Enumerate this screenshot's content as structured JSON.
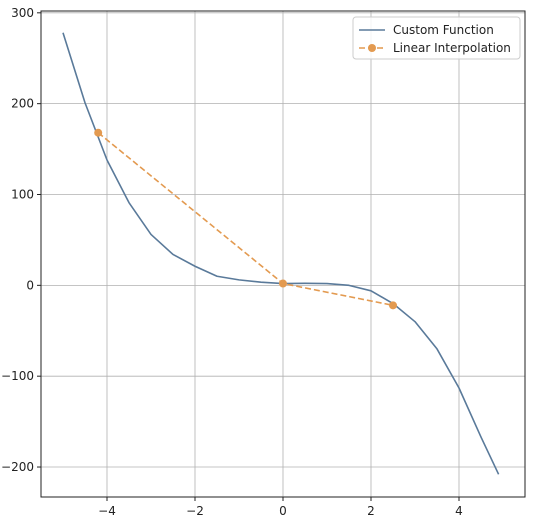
{
  "chart_data": {
    "type": "line",
    "title": "",
    "xlabel": "",
    "ylabel": "",
    "xlim": [
      -5.5,
      5.5
    ],
    "ylim": [
      -233,
      302
    ],
    "xticks": [
      -4,
      -2,
      0,
      2,
      4
    ],
    "xtick_labels": [
      "−4",
      "−2",
      "0",
      "2",
      "4"
    ],
    "yticks": [
      -200,
      -100,
      0,
      100,
      200,
      300
    ],
    "ytick_labels": [
      "−200",
      "−100",
      "0",
      "100",
      "200",
      "300"
    ],
    "grid": true,
    "legend_position": "top-right",
    "series": [
      {
        "name": "Custom Function",
        "kind": "curve",
        "color": "#5a7a9a",
        "x": [
          -5.0,
          -4.5,
          -4.0,
          -3.5,
          -3.0,
          -2.5,
          -2.0,
          -1.5,
          -1.0,
          -0.5,
          0.0,
          0.5,
          1.0,
          1.5,
          2.0,
          2.5,
          3.0,
          3.5,
          4.0,
          4.5,
          4.9
        ],
        "y": [
          278,
          201,
          138,
          91,
          56,
          34,
          21,
          10,
          6,
          3.5,
          2,
          2.2,
          2,
          0,
          -6,
          -20,
          -40,
          -70,
          -113,
          -167,
          -208
        ]
      },
      {
        "name": "Linear Interpolation",
        "kind": "dashed-markers",
        "color": "#e39a50",
        "x": [
          -4.2,
          0.0,
          2.5
        ],
        "y": [
          168,
          2,
          -22
        ]
      }
    ]
  }
}
